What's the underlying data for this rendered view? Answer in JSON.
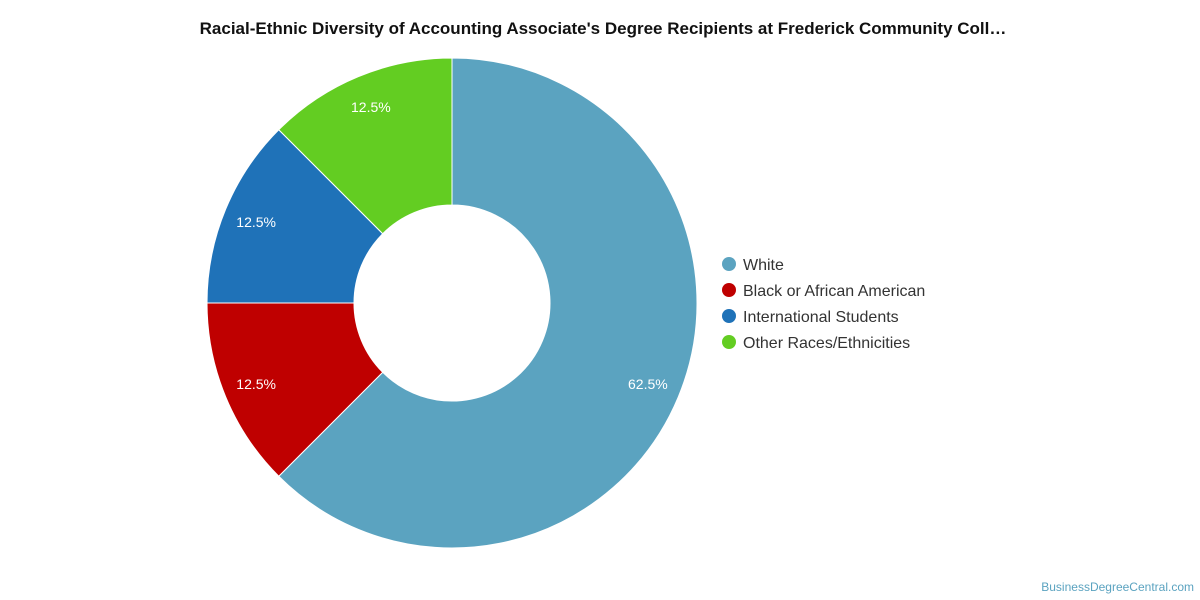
{
  "chart_data": {
    "type": "pie",
    "title": "Racial-Ethnic Diversity of Accounting Associate's Degree Recipients at Frederick Community Coll…",
    "labels": [
      "White",
      "Black or African American",
      "International Students",
      "Other Races/Ethnicities"
    ],
    "values": [
      62.5,
      12.5,
      12.5,
      12.5
    ],
    "value_labels": [
      "62.5%",
      "12.5%",
      "12.5%",
      "12.5%"
    ],
    "colors": [
      "#5ba3c0",
      "#bf0000",
      "#1f72b8",
      "#63cd22"
    ],
    "donut": true,
    "legend_position": "right"
  },
  "credit": "BusinessDegreeCentral.com"
}
